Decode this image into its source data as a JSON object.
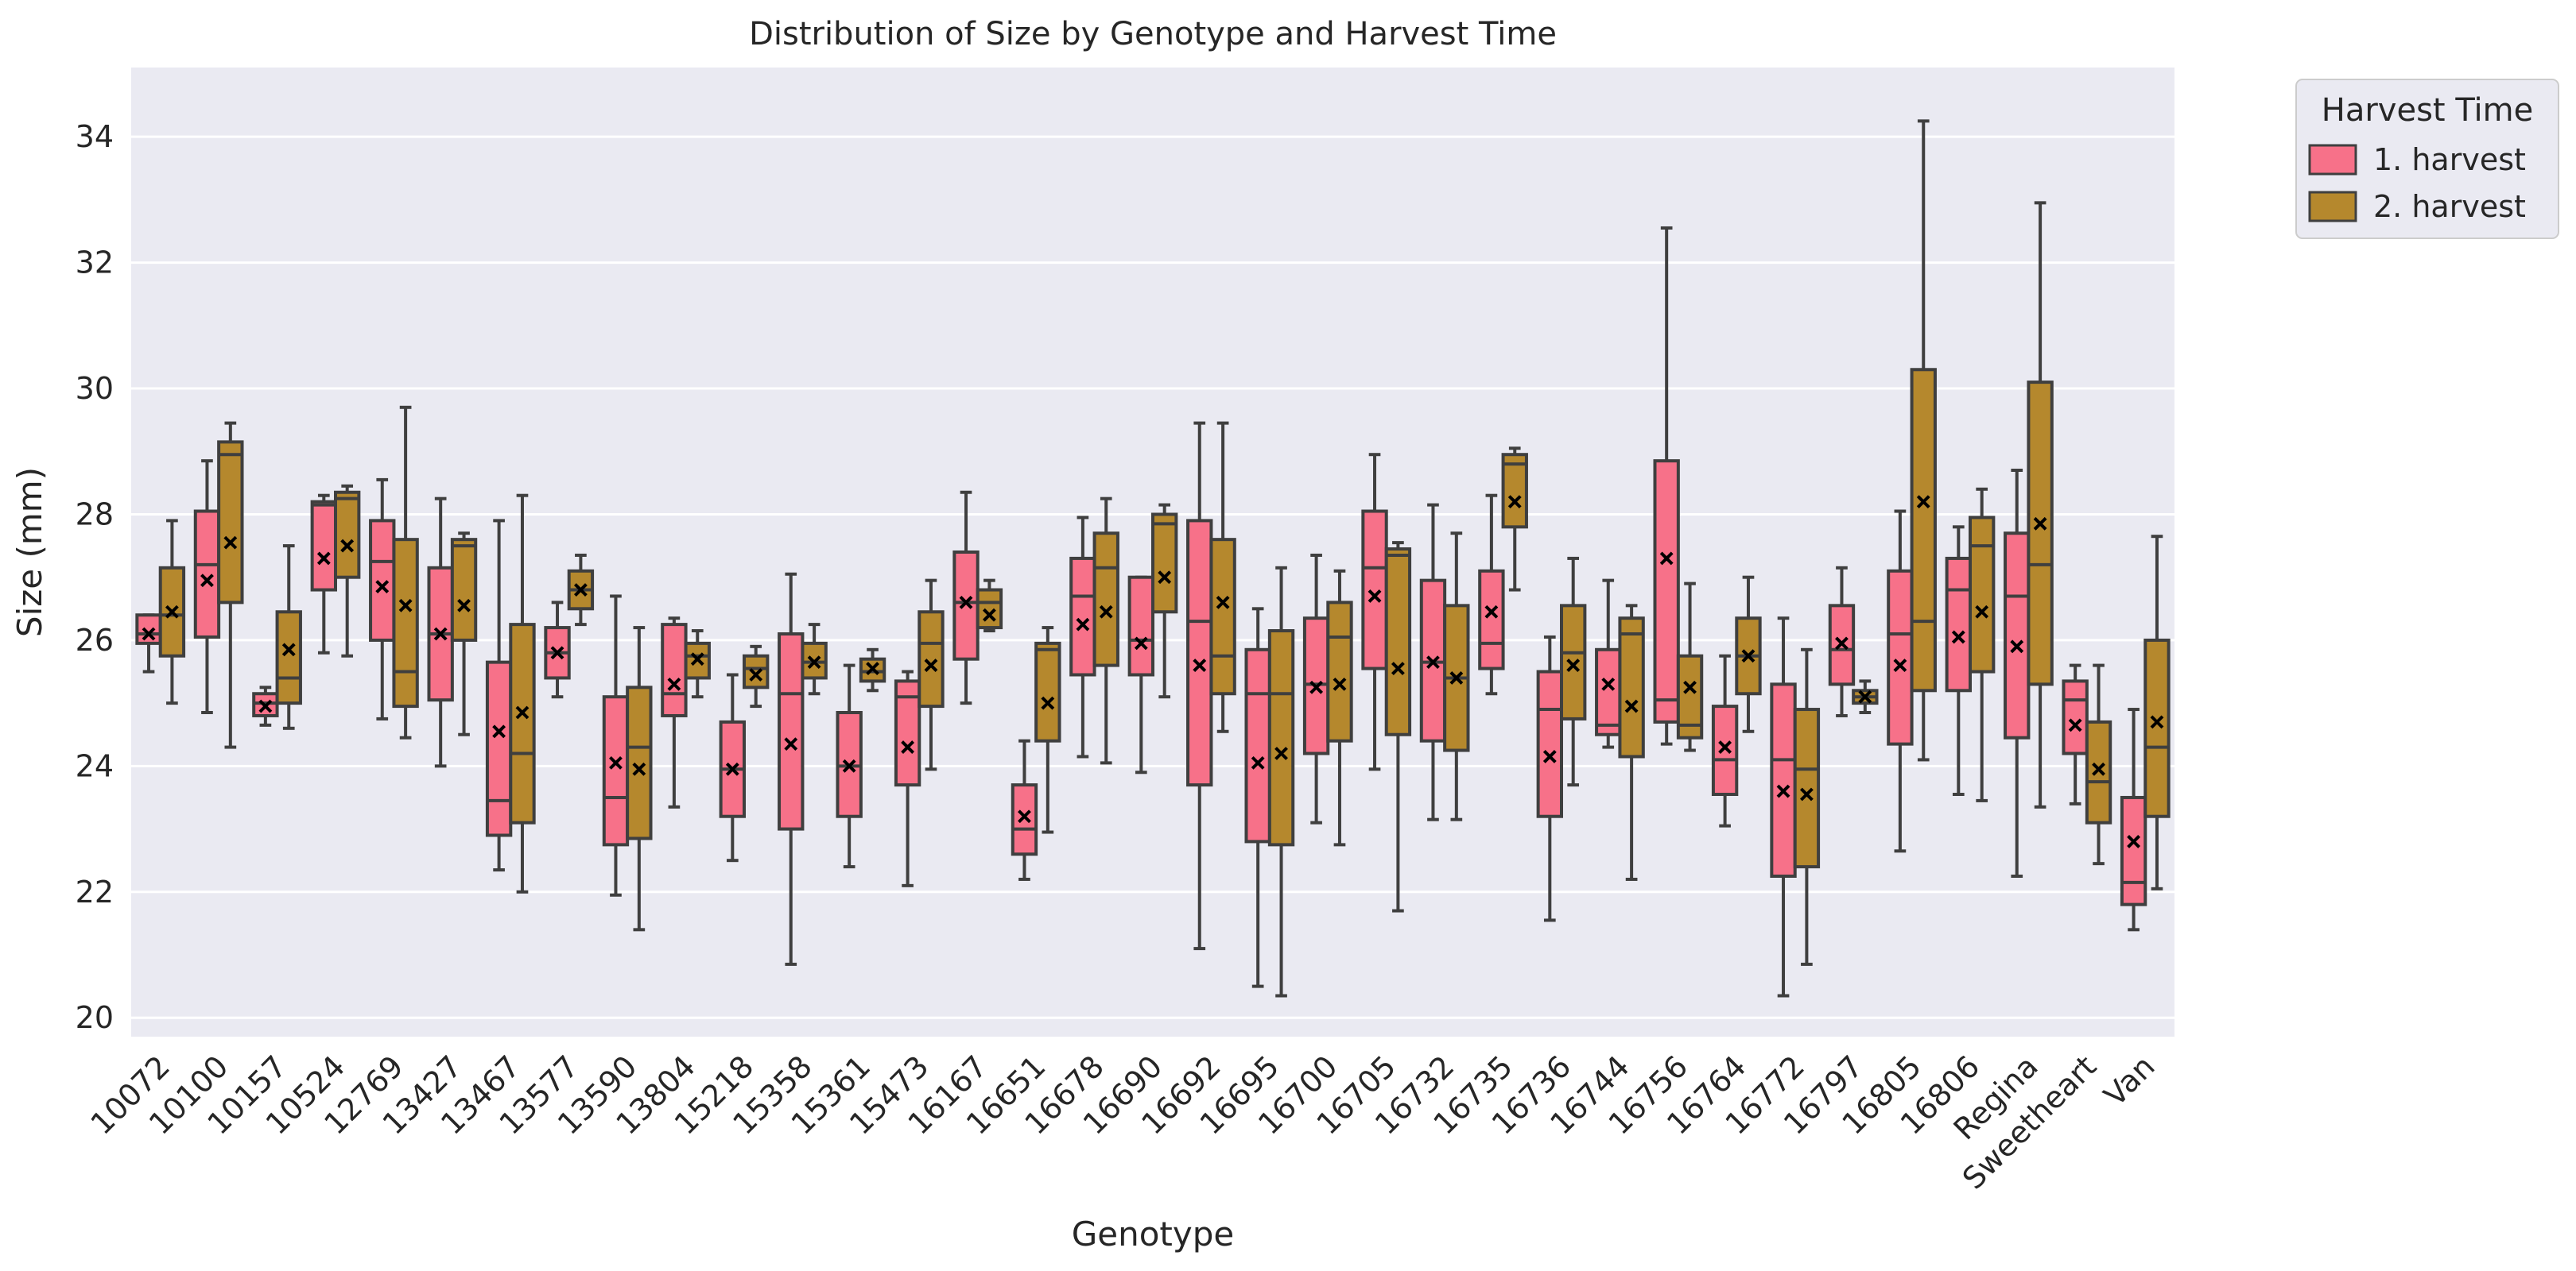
{
  "chart_data": {
    "type": "boxplot",
    "title": "Distribution of Size by Genotype and Harvest Time",
    "xlabel": "Genotype",
    "ylabel": "Size (mm)",
    "ylim": [
      19.7,
      35.1
    ],
    "yticks": [
      20,
      22,
      24,
      26,
      28,
      30,
      32,
      34
    ],
    "grid": true,
    "legend": {
      "title": "Harvest Time",
      "placement": "outside-top-right",
      "entries": [
        "1. harvest",
        "2. harvest"
      ]
    },
    "categories": [
      "10072",
      "10100",
      "10157",
      "10524",
      "12769",
      "13427",
      "13467",
      "13577",
      "13590",
      "13804",
      "15218",
      "15358",
      "15361",
      "15473",
      "16167",
      "16651",
      "16678",
      "16690",
      "16692",
      "16695",
      "16700",
      "16705",
      "16732",
      "16735",
      "16736",
      "16744",
      "16756",
      "16764",
      "16772",
      "16797",
      "16805",
      "16806",
      "Regina",
      "Sweetheart",
      "Van"
    ],
    "series": [
      {
        "name": "1. harvest",
        "color": "#f77189",
        "boxes": [
          {
            "whislo": 25.5,
            "q1": 25.95,
            "med": 26.1,
            "q3": 26.4,
            "whishi": 26.4,
            "mean": 26.1
          },
          {
            "whislo": 24.85,
            "q1": 26.05,
            "med": 27.2,
            "q3": 28.05,
            "whishi": 28.85,
            "mean": 26.95
          },
          {
            "whislo": 24.65,
            "q1": 24.8,
            "med": 25.0,
            "q3": 25.15,
            "whishi": 25.25,
            "mean": 24.95
          },
          {
            "whislo": 25.8,
            "q1": 26.8,
            "med": 28.15,
            "q3": 28.2,
            "whishi": 28.3,
            "mean": 27.3
          },
          {
            "whislo": 24.75,
            "q1": 26.0,
            "med": 27.25,
            "q3": 27.9,
            "whishi": 28.55,
            "mean": 26.85
          },
          {
            "whislo": 24.0,
            "q1": 25.05,
            "med": 26.1,
            "q3": 27.15,
            "whishi": 28.25,
            "mean": 26.1
          },
          {
            "whislo": 22.35,
            "q1": 22.9,
            "med": 23.45,
            "q3": 25.65,
            "whishi": 27.9,
            "mean": 24.55
          },
          {
            "whislo": 25.1,
            "q1": 25.4,
            "med": 25.8,
            "q3": 26.2,
            "whishi": 26.6,
            "mean": 25.8
          },
          {
            "whislo": 21.95,
            "q1": 22.75,
            "med": 23.5,
            "q3": 25.1,
            "whishi": 26.7,
            "mean": 24.05
          },
          {
            "whislo": 23.35,
            "q1": 24.8,
            "med": 25.15,
            "q3": 26.25,
            "whishi": 26.35,
            "mean": 25.3
          },
          {
            "whislo": 22.5,
            "q1": 23.2,
            "med": 23.95,
            "q3": 24.7,
            "whishi": 25.45,
            "mean": 23.95
          },
          {
            "whislo": 20.85,
            "q1": 23.0,
            "med": 25.15,
            "q3": 26.1,
            "whishi": 27.05,
            "mean": 24.35
          },
          {
            "whislo": 22.4,
            "q1": 23.2,
            "med": 24.0,
            "q3": 24.85,
            "whishi": 25.6,
            "mean": 24.0
          },
          {
            "whislo": 22.1,
            "q1": 23.7,
            "med": 25.1,
            "q3": 25.35,
            "whishi": 25.5,
            "mean": 24.3
          },
          {
            "whislo": 25.0,
            "q1": 25.7,
            "med": 26.6,
            "q3": 27.4,
            "whishi": 28.35,
            "mean": 26.6
          },
          {
            "whislo": 22.2,
            "q1": 22.6,
            "med": 23.0,
            "q3": 23.7,
            "whishi": 24.4,
            "mean": 23.2
          },
          {
            "whislo": 24.15,
            "q1": 25.45,
            "med": 26.7,
            "q3": 27.3,
            "whishi": 27.95,
            "mean": 26.25
          },
          {
            "whislo": 23.9,
            "q1": 25.45,
            "med": 26.0,
            "q3": 27.0,
            "whishi": 27.0,
            "mean": 25.95
          },
          {
            "whislo": 21.1,
            "q1": 23.7,
            "med": 26.3,
            "q3": 27.9,
            "whishi": 29.45,
            "mean": 25.6
          },
          {
            "whislo": 20.5,
            "q1": 22.8,
            "med": 25.15,
            "q3": 25.85,
            "whishi": 26.5,
            "mean": 24.05
          },
          {
            "whislo": 23.1,
            "q1": 24.2,
            "med": 25.3,
            "q3": 26.35,
            "whishi": 27.35,
            "mean": 25.25
          },
          {
            "whislo": 23.95,
            "q1": 25.55,
            "med": 27.15,
            "q3": 28.05,
            "whishi": 28.95,
            "mean": 26.7
          },
          {
            "whislo": 23.15,
            "q1": 24.4,
            "med": 25.65,
            "q3": 26.95,
            "whishi": 28.15,
            "mean": 25.65
          },
          {
            "whislo": 25.15,
            "q1": 25.55,
            "med": 25.95,
            "q3": 27.1,
            "whishi": 28.3,
            "mean": 26.45
          },
          {
            "whislo": 21.55,
            "q1": 23.2,
            "med": 24.9,
            "q3": 25.5,
            "whishi": 26.05,
            "mean": 24.15
          },
          {
            "whislo": 24.3,
            "q1": 24.5,
            "med": 24.65,
            "q3": 25.85,
            "whishi": 26.95,
            "mean": 25.3
          },
          {
            "whislo": 24.35,
            "q1": 24.7,
            "med": 25.05,
            "q3": 28.85,
            "whishi": 32.55,
            "mean": 27.3
          },
          {
            "whislo": 23.05,
            "q1": 23.55,
            "med": 24.1,
            "q3": 24.95,
            "whishi": 25.75,
            "mean": 24.3
          },
          {
            "whislo": 20.35,
            "q1": 22.25,
            "med": 24.1,
            "q3": 25.3,
            "whishi": 26.35,
            "mean": 23.6
          },
          {
            "whislo": 24.8,
            "q1": 25.3,
            "med": 25.85,
            "q3": 26.55,
            "whishi": 27.15,
            "mean": 25.95
          },
          {
            "whislo": 22.65,
            "q1": 24.35,
            "med": 26.1,
            "q3": 27.1,
            "whishi": 28.05,
            "mean": 25.6
          },
          {
            "whislo": 23.55,
            "q1": 25.2,
            "med": 26.8,
            "q3": 27.3,
            "whishi": 27.8,
            "mean": 26.05
          },
          {
            "whislo": 22.25,
            "q1": 24.45,
            "med": 26.7,
            "q3": 27.7,
            "whishi": 28.7,
            "mean": 25.9
          },
          {
            "whislo": 23.4,
            "q1": 24.2,
            "med": 25.05,
            "q3": 25.35,
            "whishi": 25.6,
            "mean": 24.65
          },
          {
            "whislo": 21.4,
            "q1": 21.8,
            "med": 22.15,
            "q3": 23.5,
            "whishi": 24.9,
            "mean": 22.8
          }
        ]
      },
      {
        "name": "2. harvest",
        "color": "#b5882d",
        "boxes": [
          {
            "whislo": 25.0,
            "q1": 25.75,
            "med": 26.4,
            "q3": 27.15,
            "whishi": 27.9,
            "mean": 26.45
          },
          {
            "whislo": 24.3,
            "q1": 26.6,
            "med": 28.95,
            "q3": 29.15,
            "whishi": 29.45,
            "mean": 27.55
          },
          {
            "whislo": 24.6,
            "q1": 25.0,
            "med": 25.4,
            "q3": 26.45,
            "whishi": 27.5,
            "mean": 25.85
          },
          {
            "whislo": 25.75,
            "q1": 27.0,
            "med": 28.25,
            "q3": 28.35,
            "whishi": 28.45,
            "mean": 27.5
          },
          {
            "whislo": 24.45,
            "q1": 24.95,
            "med": 25.5,
            "q3": 27.6,
            "whishi": 29.7,
            "mean": 26.55
          },
          {
            "whislo": 24.5,
            "q1": 26.0,
            "med": 27.5,
            "q3": 27.6,
            "whishi": 27.7,
            "mean": 26.55
          },
          {
            "whislo": 22.0,
            "q1": 23.1,
            "med": 24.2,
            "q3": 26.25,
            "whishi": 28.3,
            "mean": 24.85
          },
          {
            "whislo": 26.25,
            "q1": 26.5,
            "med": 26.8,
            "q3": 27.1,
            "whishi": 27.35,
            "mean": 26.8
          },
          {
            "whislo": 21.4,
            "q1": 22.85,
            "med": 24.3,
            "q3": 25.25,
            "whishi": 26.2,
            "mean": 23.95
          },
          {
            "whislo": 25.1,
            "q1": 25.4,
            "med": 25.75,
            "q3": 25.95,
            "whishi": 26.15,
            "mean": 25.7
          },
          {
            "whislo": 24.95,
            "q1": 25.25,
            "med": 25.55,
            "q3": 25.75,
            "whishi": 25.9,
            "mean": 25.45
          },
          {
            "whislo": 25.15,
            "q1": 25.4,
            "med": 25.65,
            "q3": 25.95,
            "whishi": 26.25,
            "mean": 25.65
          },
          {
            "whislo": 25.2,
            "q1": 25.35,
            "med": 25.5,
            "q3": 25.7,
            "whishi": 25.85,
            "mean": 25.55
          },
          {
            "whislo": 23.95,
            "q1": 24.95,
            "med": 25.95,
            "q3": 26.45,
            "whishi": 26.95,
            "mean": 25.6
          },
          {
            "whislo": 26.15,
            "q1": 26.2,
            "med": 26.6,
            "q3": 26.8,
            "whishi": 26.95,
            "mean": 26.4
          },
          {
            "whislo": 22.95,
            "q1": 24.4,
            "med": 25.85,
            "q3": 25.95,
            "whishi": 26.2,
            "mean": 25.0
          },
          {
            "whislo": 24.05,
            "q1": 25.6,
            "med": 27.15,
            "q3": 27.7,
            "whishi": 28.25,
            "mean": 26.45
          },
          {
            "whislo": 25.1,
            "q1": 26.45,
            "med": 27.85,
            "q3": 28.0,
            "whishi": 28.15,
            "mean": 27.0
          },
          {
            "whislo": 24.55,
            "q1": 25.15,
            "med": 25.75,
            "q3": 27.6,
            "whishi": 29.45,
            "mean": 26.6
          },
          {
            "whislo": 20.35,
            "q1": 22.75,
            "med": 25.15,
            "q3": 26.15,
            "whishi": 27.15,
            "mean": 24.2
          },
          {
            "whislo": 22.75,
            "q1": 24.4,
            "med": 26.05,
            "q3": 26.6,
            "whishi": 27.1,
            "mean": 25.3
          },
          {
            "whislo": 21.7,
            "q1": 24.5,
            "med": 27.35,
            "q3": 27.45,
            "whishi": 27.55,
            "mean": 25.55
          },
          {
            "whislo": 23.15,
            "q1": 24.25,
            "med": 25.4,
            "q3": 26.55,
            "whishi": 27.7,
            "mean": 25.4
          },
          {
            "whislo": 26.8,
            "q1": 27.8,
            "med": 28.8,
            "q3": 28.95,
            "whishi": 29.05,
            "mean": 28.2
          },
          {
            "whislo": 23.7,
            "q1": 24.75,
            "med": 25.8,
            "q3": 26.55,
            "whishi": 27.3,
            "mean": 25.6
          },
          {
            "whislo": 22.2,
            "q1": 24.15,
            "med": 26.1,
            "q3": 26.35,
            "whishi": 26.55,
            "mean": 24.95
          },
          {
            "whislo": 24.25,
            "q1": 24.45,
            "med": 24.65,
            "q3": 25.75,
            "whishi": 26.9,
            "mean": 25.25
          },
          {
            "whislo": 24.55,
            "q1": 25.15,
            "med": 25.75,
            "q3": 26.35,
            "whishi": 27.0,
            "mean": 25.75
          },
          {
            "whislo": 20.85,
            "q1": 22.4,
            "med": 23.95,
            "q3": 24.9,
            "whishi": 25.85,
            "mean": 23.55
          },
          {
            "whislo": 24.85,
            "q1": 25.0,
            "med": 25.1,
            "q3": 25.2,
            "whishi": 25.35,
            "mean": 25.1
          },
          {
            "whislo": 24.1,
            "q1": 25.2,
            "med": 26.3,
            "q3": 30.3,
            "whishi": 34.25,
            "mean": 28.2
          },
          {
            "whislo": 23.45,
            "q1": 25.5,
            "med": 27.5,
            "q3": 27.95,
            "whishi": 28.4,
            "mean": 26.45
          },
          {
            "whislo": 23.35,
            "q1": 25.3,
            "med": 27.2,
            "q3": 30.1,
            "whishi": 32.95,
            "mean": 27.85
          },
          {
            "whislo": 22.45,
            "q1": 23.1,
            "med": 23.75,
            "q3": 24.7,
            "whishi": 25.6,
            "mean": 23.95
          },
          {
            "whislo": 22.05,
            "q1": 23.2,
            "med": 24.3,
            "q3": 26.0,
            "whishi": 27.65,
            "mean": 24.7
          }
        ]
      }
    ]
  }
}
